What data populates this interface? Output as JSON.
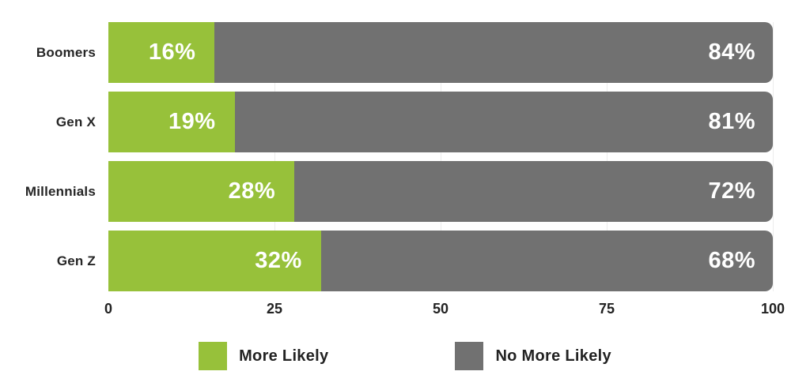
{
  "chart_data": {
    "type": "bar",
    "orientation": "horizontal-stacked",
    "title": "",
    "categories": [
      "Boomers",
      "Gen X",
      "Millennials",
      "Gen Z"
    ],
    "series": [
      {
        "name": "More Likely",
        "color": "#97C13A",
        "values": [
          16,
          19,
          28,
          32
        ],
        "labels": [
          "16%",
          "19%",
          "28%",
          "32%"
        ]
      },
      {
        "name": "No More Likely",
        "color": "#717171",
        "values": [
          84,
          81,
          72,
          68
        ],
        "labels": [
          "84%",
          "81%",
          "72%",
          "68%"
        ]
      }
    ],
    "xlim": [
      0,
      100
    ],
    "x_ticks": [
      "0",
      "25",
      "50",
      "75",
      "100"
    ],
    "grid": "vertical-light",
    "gridline_color": "#ececec",
    "value_label_color": "#ffffff",
    "legend_position": "bottom"
  }
}
